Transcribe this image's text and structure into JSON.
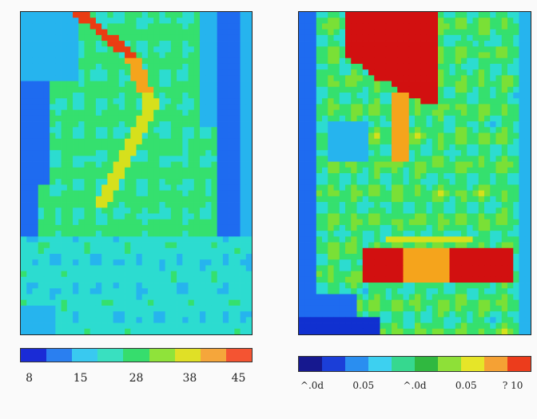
{
  "colors": {
    "palette": [
      "#1030d0",
      "#1e6bf0",
      "#26b4ee",
      "#2cdcd0",
      "#35e06e",
      "#7ae036",
      "#d6e01c",
      "#f5a41c",
      "#ea3c12",
      "#d21010"
    ]
  },
  "chart_data": [
    {
      "type": "heatmap",
      "title": "",
      "colorbar": {
        "ticks": [
          "8",
          "15",
          "28",
          "38",
          "45"
        ],
        "colors": [
          "#1a2bd6",
          "#2a7ff0",
          "#39c9f0",
          "#39e0c0",
          "#36dd6d",
          "#8fe33a",
          "#e0e026",
          "#f5a63b",
          "#f45432"
        ]
      }
    },
    {
      "type": "heatmap",
      "title": "",
      "colorbar": {
        "ticks": [
          "^.0d",
          "0.05",
          "^.0d",
          "0.05",
          "? 10"
        ],
        "colors": [
          "#16188f",
          "#1b3ed8",
          "#2a8ef0",
          "#3dd0f0",
          "#36d88f",
          "#30b840",
          "#8ee038",
          "#e6e528",
          "#f5a134",
          "#ec3c1c"
        ]
      }
    }
  ]
}
